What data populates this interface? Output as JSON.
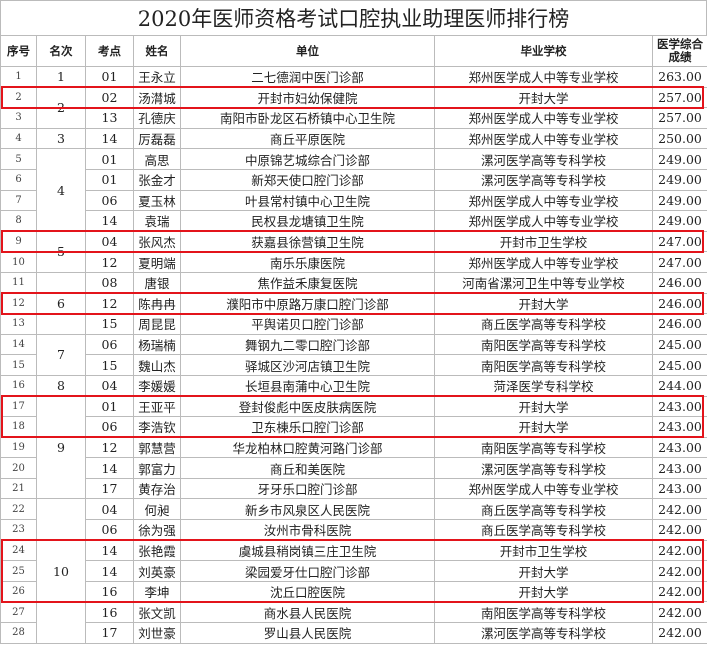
{
  "title": "2020年医师资格考试口腔执业助理医师排行榜",
  "columns": [
    "序号",
    "名次",
    "考点",
    "姓名",
    "单位",
    "毕业学校",
    "医学综合成绩"
  ],
  "highlight_color": "#e3141b",
  "ranks": [
    {
      "rank": "1",
      "from": 1,
      "to": 1
    },
    {
      "rank": "2",
      "from": 2,
      "to": 3
    },
    {
      "rank": "3",
      "from": 4,
      "to": 4
    },
    {
      "rank": "4",
      "from": 5,
      "to": 8
    },
    {
      "rank": "5",
      "from": 9,
      "to": 10
    },
    {
      "rank": "6",
      "from": 11,
      "to": 13
    },
    {
      "rank": "7",
      "from": 14,
      "to": 15
    },
    {
      "rank": "8",
      "from": 16,
      "to": 16
    },
    {
      "rank": "9",
      "from": 17,
      "to": 21
    },
    {
      "rank": "10",
      "from": 22,
      "to": 28
    }
  ],
  "highlighted_rows": [
    [
      2,
      2
    ],
    [
      9,
      9
    ],
    [
      12,
      12
    ],
    [
      17,
      18
    ],
    [
      24,
      26
    ]
  ],
  "rows": [
    {
      "seq": "1",
      "site": "01",
      "name": "王永立",
      "unit": "二七德润中医门诊部",
      "school": "郑州医学成人中等专业学校",
      "score": "263.00"
    },
    {
      "seq": "2",
      "site": "02",
      "name": "汤潸城",
      "unit": "开封市妇幼保健院",
      "school": "开封大学",
      "score": "257.00"
    },
    {
      "seq": "3",
      "site": "13",
      "name": "孔德庆",
      "unit": "南阳市卧龙区石桥镇中心卫生院",
      "school": "郑州医学成人中等专业学校",
      "score": "257.00"
    },
    {
      "seq": "4",
      "site": "14",
      "name": "厉磊磊",
      "unit": "商丘平原医院",
      "school": "郑州医学成人中等专业学校",
      "score": "250.00"
    },
    {
      "seq": "5",
      "site": "01",
      "name": "高思",
      "unit": "中原锦艺城综合门诊部",
      "school": "漯河医学高等专科学校",
      "score": "249.00"
    },
    {
      "seq": "6",
      "site": "01",
      "name": "张金才",
      "unit": "新郑天使口腔门诊部",
      "school": "漯河医学高等专科学校",
      "score": "249.00"
    },
    {
      "seq": "7",
      "site": "06",
      "name": "夏玉林",
      "unit": "叶县常村镇中心卫生院",
      "school": "郑州医学成人中等专业学校",
      "score": "249.00"
    },
    {
      "seq": "8",
      "site": "14",
      "name": "袁瑞",
      "unit": "民权县龙塘镇卫生院",
      "school": "郑州医学成人中等专业学校",
      "score": "249.00"
    },
    {
      "seq": "9",
      "site": "04",
      "name": "张风杰",
      "unit": "获嘉县徐营镇卫生院",
      "school": "开封市卫生学校",
      "score": "247.00"
    },
    {
      "seq": "10",
      "site": "12",
      "name": "夏明端",
      "unit": "南乐乐康医院",
      "school": "郑州医学成人中等专业学校",
      "score": "247.00"
    },
    {
      "seq": "11",
      "site": "08",
      "name": "唐银",
      "unit": "焦作益禾康复医院",
      "school": "河南省漯河卫生中等专业学校",
      "score": "246.00"
    },
    {
      "seq": "12",
      "site": "12",
      "name": "陈冉冉",
      "unit": "濮阳市中原路万康口腔门诊部",
      "school": "开封大学",
      "score": "246.00"
    },
    {
      "seq": "13",
      "site": "15",
      "name": "周昆昆",
      "unit": "平舆诺贝口腔门诊部",
      "school": "商丘医学高等专科学校",
      "score": "246.00"
    },
    {
      "seq": "14",
      "site": "06",
      "name": "杨瑞楠",
      "unit": "舞钢九二零口腔门诊部",
      "school": "南阳医学高等专科学校",
      "score": "245.00"
    },
    {
      "seq": "15",
      "site": "15",
      "name": "魏山杰",
      "unit": "驿城区沙河店镇卫生院",
      "school": "南阳医学高等专科学校",
      "score": "245.00"
    },
    {
      "seq": "16",
      "site": "04",
      "name": "李媛媛",
      "unit": "长垣县南蒲中心卫生院",
      "school": "菏泽医学专科学校",
      "score": "244.00"
    },
    {
      "seq": "17",
      "site": "01",
      "name": "王亚平",
      "unit": "登封俊彪中医皮肤病医院",
      "school": "开封大学",
      "score": "243.00"
    },
    {
      "seq": "18",
      "site": "06",
      "name": "李浩钦",
      "unit": "卫东棟乐口腔门诊部",
      "school": "开封大学",
      "score": "243.00"
    },
    {
      "seq": "19",
      "site": "12",
      "name": "郭慧营",
      "unit": "华龙柏林口腔黄河路门诊部",
      "school": "南阳医学高等专科学校",
      "score": "243.00"
    },
    {
      "seq": "20",
      "site": "14",
      "name": "郭富力",
      "unit": "商丘和美医院",
      "school": "漯河医学高等专科学校",
      "score": "243.00"
    },
    {
      "seq": "21",
      "site": "17",
      "name": "黄存治",
      "unit": "牙牙乐口腔门诊部",
      "school": "郑州医学成人中等专业学校",
      "score": "243.00"
    },
    {
      "seq": "22",
      "site": "04",
      "name": "何昶",
      "unit": "新乡市风泉区人民医院",
      "school": "商丘医学高等专科学校",
      "score": "242.00"
    },
    {
      "seq": "23",
      "site": "06",
      "name": "徐为强",
      "unit": "汝州市骨科医院",
      "school": "商丘医学高等专科学校",
      "score": "242.00"
    },
    {
      "seq": "24",
      "site": "14",
      "name": "张艳霞",
      "unit": "虞城县稍岗镇三庄卫生院",
      "school": "开封市卫生学校",
      "score": "242.00"
    },
    {
      "seq": "25",
      "site": "14",
      "name": "刘英豪",
      "unit": "梁园爱牙仕口腔门诊部",
      "school": "开封大学",
      "score": "242.00"
    },
    {
      "seq": "26",
      "site": "16",
      "name": "李坤",
      "unit": "沈丘口腔医院",
      "school": "开封大学",
      "score": "242.00"
    },
    {
      "seq": "27",
      "site": "16",
      "name": "张文凯",
      "unit": "商水县人民医院",
      "school": "南阳医学高等专科学校",
      "score": "242.00"
    },
    {
      "seq": "28",
      "site": "17",
      "name": "刘世豪",
      "unit": "罗山县人民医院",
      "school": "漯河医学高等专科学校",
      "score": "242.00"
    }
  ]
}
